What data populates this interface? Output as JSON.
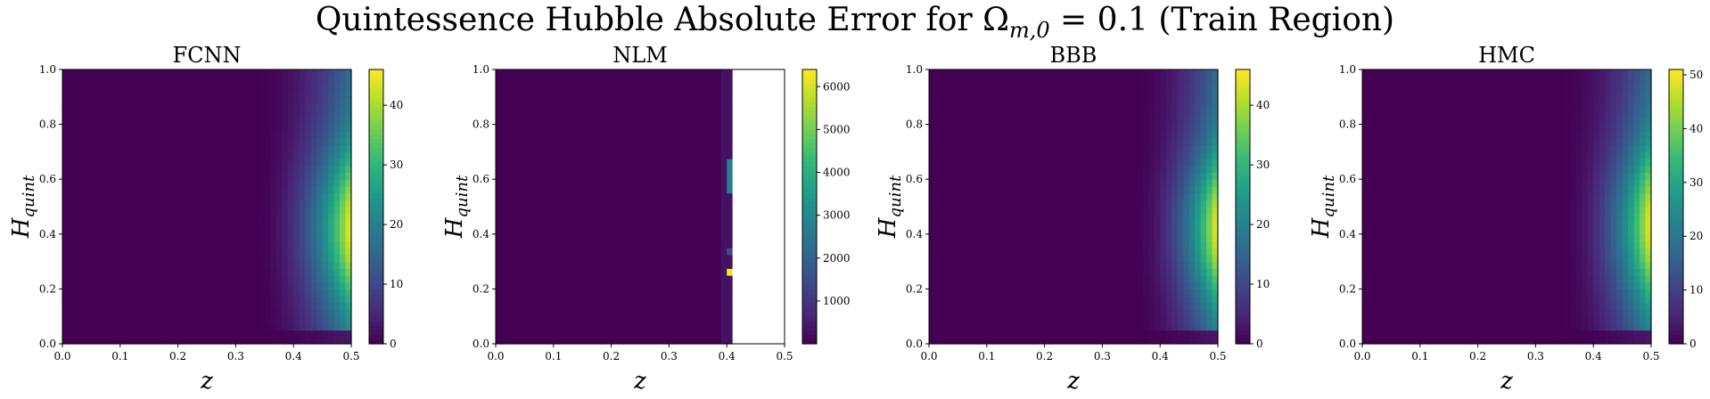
{
  "figure": {
    "suptitle": "Quintessence Hubble Absolute Error for Ω",
    "suptitle_sub": "m,0",
    "suptitle_rest": " = 0.1 (Train Region)"
  },
  "colors": {
    "viridis": [
      "#440154",
      "#482878",
      "#3e4989",
      "#31688e",
      "#26828e",
      "#1f9e89",
      "#35b779",
      "#6ece58",
      "#b5de2b",
      "#fde725"
    ],
    "background": "#ffffff",
    "nan": "#ffffff"
  },
  "chart_data": [
    {
      "type": "heatmap",
      "title": "FCNN",
      "xlabel": "z",
      "ylabel": "H",
      "ylabel_sub": "quint",
      "xlim": [
        0,
        0.5
      ],
      "ylim": [
        0,
        1
      ],
      "xticks": [
        "0.0",
        "0.1",
        "0.2",
        "0.3",
        "0.4",
        "0.5"
      ],
      "yticks": [
        "0.0",
        "0.2",
        "0.4",
        "0.6",
        "0.8",
        "1.0"
      ],
      "colorbar": {
        "min": 0,
        "max": 46,
        "ticks": [
          0,
          10,
          20,
          30,
          40
        ]
      },
      "field": {
        "kind": "edge",
        "peak": 46,
        "z_onset": 0.33,
        "y_center": 0.42,
        "y_width": 0.28,
        "low_floor": 0.04
      }
    },
    {
      "type": "heatmap",
      "title": "NLM",
      "xlabel": "z",
      "ylabel": "H",
      "ylabel_sub": "quint",
      "xlim": [
        0,
        0.5
      ],
      "ylim": [
        0,
        1
      ],
      "xticks": [
        "0.0",
        "0.1",
        "0.2",
        "0.3",
        "0.4",
        "0.5"
      ],
      "yticks": [
        "0.0",
        "0.2",
        "0.4",
        "0.6",
        "0.8",
        "1.0"
      ],
      "colorbar": {
        "min": 0,
        "max": 6400,
        "ticks": [
          1000,
          2000,
          3000,
          4000,
          5000,
          6000
        ]
      },
      "field": {
        "kind": "cutoff",
        "z_cutoff": 0.41,
        "spikes": [
          {
            "z": 0.405,
            "y0": 0.56,
            "y1": 0.68,
            "value": 2700
          },
          {
            "z": 0.405,
            "y0": 0.33,
            "y1": 0.35,
            "value": 1500
          },
          {
            "z": 0.405,
            "y0": 0.25,
            "y1": 0.27,
            "value": 6300
          }
        ]
      }
    },
    {
      "type": "heatmap",
      "title": "BBB",
      "xlabel": "z",
      "ylabel": "H",
      "ylabel_sub": "quint",
      "xlim": [
        0,
        0.5
      ],
      "ylim": [
        0,
        1
      ],
      "xticks": [
        "0.0",
        "0.1",
        "0.2",
        "0.3",
        "0.4",
        "0.5"
      ],
      "yticks": [
        "0.0",
        "0.2",
        "0.4",
        "0.6",
        "0.8",
        "1.0"
      ],
      "colorbar": {
        "min": 0,
        "max": 46,
        "ticks": [
          0,
          10,
          20,
          30,
          40
        ]
      },
      "field": {
        "kind": "edge",
        "peak": 46,
        "z_onset": 0.35,
        "y_center": 0.42,
        "y_width": 0.26,
        "low_floor": 0.04
      }
    },
    {
      "type": "heatmap",
      "title": "HMC",
      "xlabel": "z",
      "ylabel": "H",
      "ylabel_sub": "quint",
      "xlim": [
        0,
        0.5
      ],
      "ylim": [
        0,
        1
      ],
      "xticks": [
        "0.0",
        "0.1",
        "0.2",
        "0.3",
        "0.4",
        "0.5"
      ],
      "yticks": [
        "0.0",
        "0.2",
        "0.4",
        "0.6",
        "0.8",
        "1.0"
      ],
      "colorbar": {
        "min": 0,
        "max": 51,
        "ticks": [
          0,
          10,
          20,
          30,
          40,
          50
        ]
      },
      "field": {
        "kind": "edge",
        "peak": 51,
        "z_onset": 0.34,
        "y_center": 0.43,
        "y_width": 0.28,
        "low_floor": 0.04
      }
    }
  ]
}
